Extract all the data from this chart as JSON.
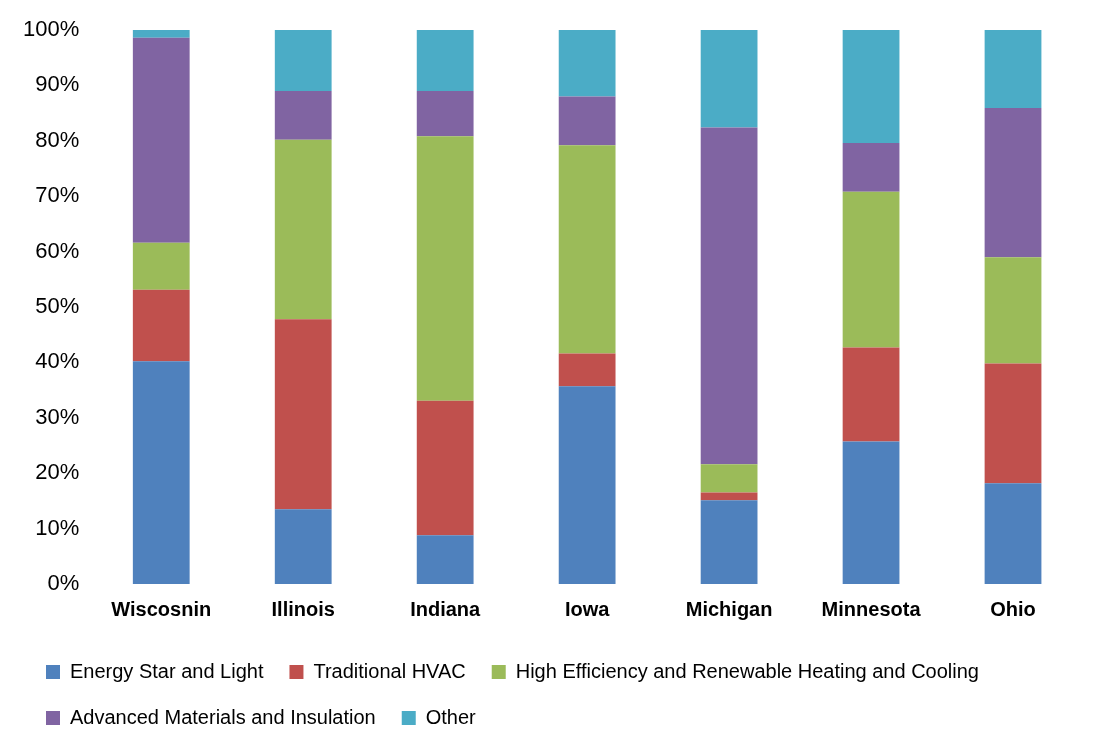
{
  "chart_data": {
    "type": "bar",
    "stacked": true,
    "categories": [
      "Wiscosnin",
      "Illinois",
      "Indiana",
      "Iowa",
      "Michigan",
      "Minnesota",
      "Ohio"
    ],
    "series": [
      {
        "name": "Energy Star and Light",
        "color": "#4f81bd",
        "values": [
          40.2,
          13.5,
          8.8,
          35.7,
          15.1,
          25.7,
          18.2
        ]
      },
      {
        "name": "Traditional HVAC",
        "color": "#c0504d",
        "values": [
          12.9,
          34.3,
          24.3,
          5.9,
          1.4,
          17,
          21.6
        ]
      },
      {
        "name": "High Efficiency and Renewable Heating and Cooling",
        "color": "#9bbb59",
        "values": [
          8.5,
          32.4,
          47.7,
          37.6,
          5.1,
          28.1,
          19.2
        ]
      },
      {
        "name": "Advanced Materials and Insulation",
        "color": "#8064a2",
        "values": [
          37,
          8.8,
          8.2,
          8.8,
          60.8,
          8.8,
          26.9
        ]
      },
      {
        "name": "Other",
        "color": "#4bacc6",
        "values": [
          1.4,
          11,
          11,
          12,
          17.6,
          20.4,
          14.1
        ]
      }
    ],
    "ylim": [
      0,
      100
    ],
    "yticks": [
      {
        "value": 0,
        "label": "0%"
      },
      {
        "value": 10,
        "label": "10%"
      },
      {
        "value": 20,
        "label": "20%"
      },
      {
        "value": 30,
        "label": "30%"
      },
      {
        "value": 40,
        "label": "40%"
      },
      {
        "value": 50,
        "label": "50%"
      },
      {
        "value": 60,
        "label": "60%"
      },
      {
        "value": 70,
        "label": "70%"
      },
      {
        "value": 80,
        "label": "80%"
      },
      {
        "value": 90,
        "label": "90%"
      },
      {
        "value": 100,
        "label": "100%"
      }
    ],
    "grid": false,
    "legend": "bottom"
  }
}
